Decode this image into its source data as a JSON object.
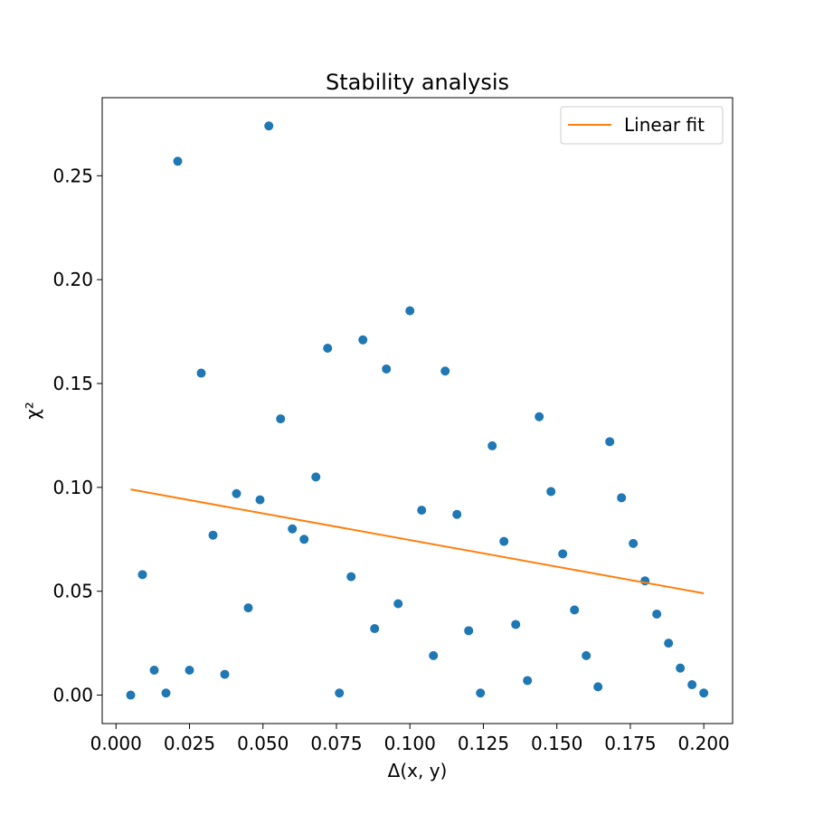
{
  "chart_data": {
    "type": "scatter",
    "title": "Stability analysis",
    "xlabel": "Δ(x, y)",
    "ylabel": "χ²",
    "xlim": [
      -0.0047,
      0.2098
    ],
    "ylim": [
      -0.0137,
      0.2876
    ],
    "xticks": [
      0.0,
      0.025,
      0.05,
      0.075,
      0.1,
      0.125,
      0.15,
      0.175,
      0.2
    ],
    "xtick_labels": [
      "0.000",
      "0.025",
      "0.050",
      "0.075",
      "0.100",
      "0.125",
      "0.150",
      "0.175",
      "0.200"
    ],
    "yticks": [
      0.0,
      0.05,
      0.1,
      0.15,
      0.2,
      0.25
    ],
    "ytick_labels": [
      "0.00",
      "0.05",
      "0.10",
      "0.15",
      "0.20",
      "0.25"
    ],
    "grid": false,
    "legend": {
      "position": "top-right",
      "entries": [
        "Linear fit"
      ]
    },
    "colors": {
      "points": "#1f77b4",
      "fit": "#ff7f0e"
    },
    "series": [
      {
        "kind": "scatter",
        "x": [
          0.005,
          0.009,
          0.013,
          0.017,
          0.021,
          0.025,
          0.029,
          0.033,
          0.037,
          0.041,
          0.045,
          0.049,
          0.052,
          0.056,
          0.06,
          0.064,
          0.068,
          0.072,
          0.076,
          0.08,
          0.084,
          0.088,
          0.092,
          0.096,
          0.1,
          0.104,
          0.108,
          0.112,
          0.116,
          0.12,
          0.124,
          0.128,
          0.132,
          0.136,
          0.14,
          0.144,
          0.148,
          0.152,
          0.156,
          0.16,
          0.164,
          0.168,
          0.172,
          0.176,
          0.18,
          0.184,
          0.188,
          0.192,
          0.196,
          0.2
        ],
        "y": [
          0.0,
          0.058,
          0.012,
          0.001,
          0.257,
          0.012,
          0.155,
          0.077,
          0.01,
          0.097,
          0.042,
          0.094,
          0.274,
          0.133,
          0.08,
          0.075,
          0.105,
          0.167,
          0.001,
          0.057,
          0.171,
          0.032,
          0.157,
          0.044,
          0.185,
          0.089,
          0.019,
          0.156,
          0.087,
          0.031,
          0.001,
          0.12,
          0.074,
          0.034,
          0.007,
          0.134,
          0.098,
          0.068,
          0.041,
          0.019,
          0.004,
          0.122,
          0.095,
          0.073,
          0.055,
          0.039,
          0.025,
          0.013,
          0.005,
          0.001
        ]
      },
      {
        "kind": "line",
        "name": "Linear fit",
        "x": [
          0.005,
          0.2
        ],
        "y": [
          0.099,
          0.049
        ]
      }
    ]
  }
}
